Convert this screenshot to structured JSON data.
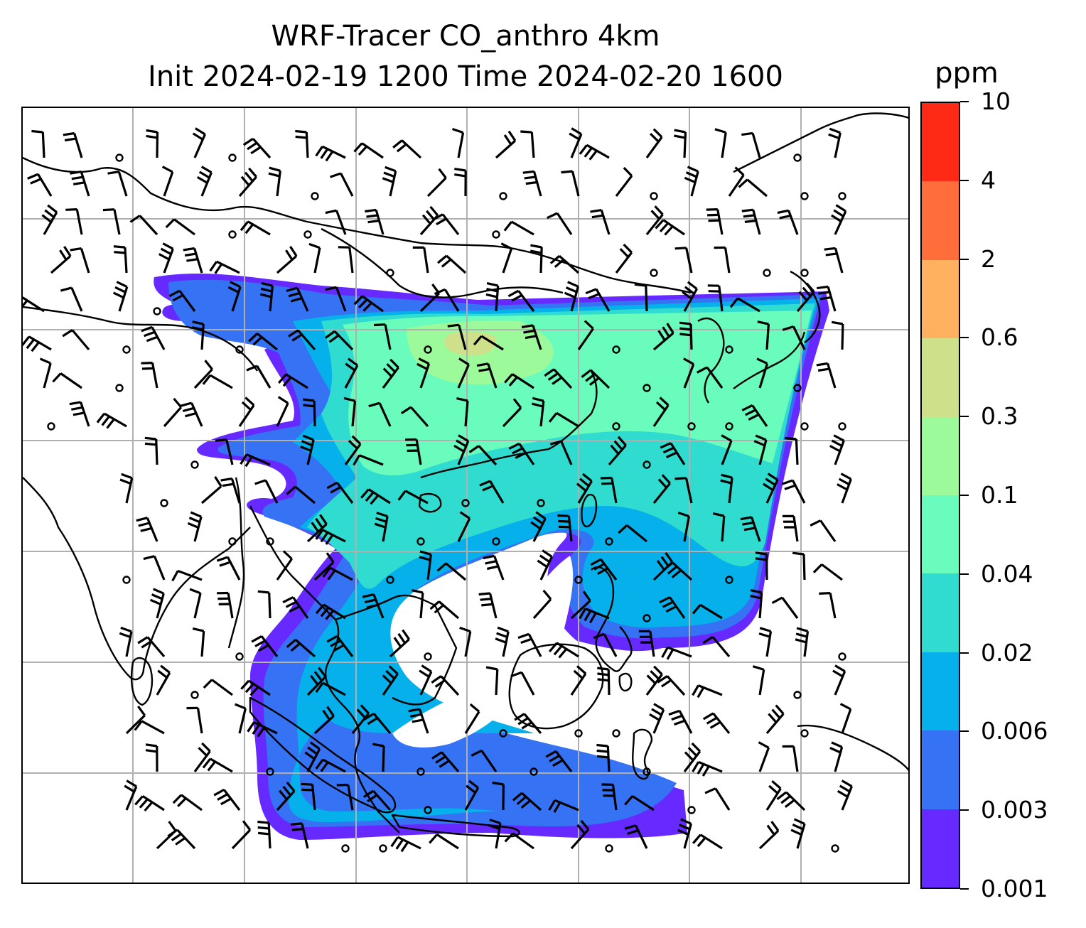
{
  "title": {
    "line1": "WRF-Tracer CO_anthro 4km",
    "line2": "Init 2024-02-19 1200 Time 2024-02-20 1600"
  },
  "colorbar": {
    "unit": "ppm",
    "levels": [
      "0.001",
      "0.003",
      "0.006",
      "0.02",
      "0.04",
      "0.1",
      "0.3",
      "0.6",
      "2",
      "4",
      "10"
    ],
    "colors": [
      "#6629ff",
      "#3572f4",
      "#06b0ea",
      "#2fdccf",
      "#69fcbd",
      "#9cfa9a",
      "#cfe08a",
      "#ffb160",
      "#ff6e3a",
      "#ff2a15"
    ]
  },
  "map": {
    "background": "#ffffff",
    "gridline_color": "#b0b0b0",
    "coastline_color": "#000000",
    "wind_barb_color": "#000000",
    "gridlines": "on",
    "features": [
      "coastlines",
      "country-borders",
      "wind-barbs",
      "calm-wind-circles",
      "CO-tracer-filled-contours"
    ]
  }
}
